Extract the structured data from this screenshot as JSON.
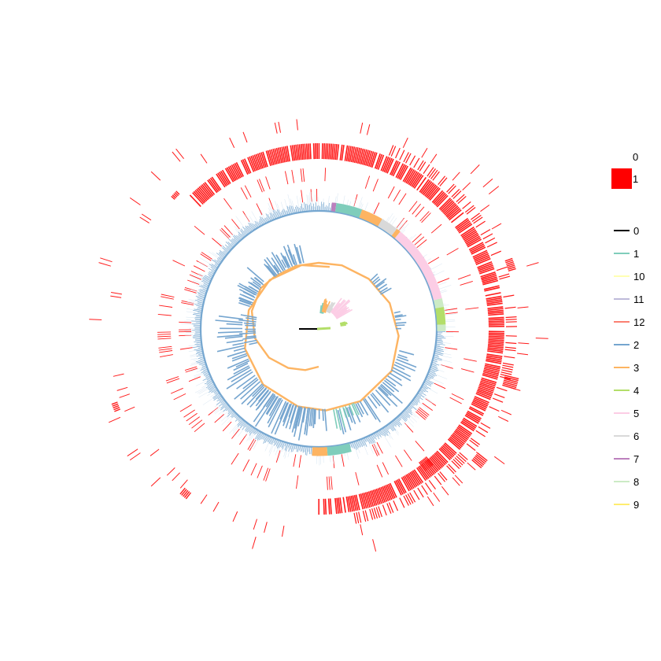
{
  "figure": {
    "type": "circular-phylogenetic-tree",
    "background": "#ffffff",
    "presence_color": "#ff1a1a",
    "tip_color": "#76a7d0"
  },
  "legend_presence": {
    "entries": [
      {
        "label": "0",
        "color": "#ffffff"
      },
      {
        "label": "1",
        "color": "#ff0000"
      }
    ]
  },
  "legend_clades": {
    "entries": [
      {
        "label": "0",
        "color": "#000000"
      },
      {
        "label": "1",
        "color": "#7fcdbb"
      },
      {
        "label": "10",
        "color": "#ffffb3"
      },
      {
        "label": "11",
        "color": "#bebada"
      },
      {
        "label": "12",
        "color": "#fb8072"
      },
      {
        "label": "2",
        "color": "#75a5cf"
      },
      {
        "label": "3",
        "color": "#fdb462"
      },
      {
        "label": "4",
        "color": "#b3de69"
      },
      {
        "label": "5",
        "color": "#fccde5"
      },
      {
        "label": "6",
        "color": "#d9d9d9"
      },
      {
        "label": "7",
        "color": "#bc80bd"
      },
      {
        "label": "8",
        "color": "#ccebc5"
      },
      {
        "label": "9",
        "color": "#ffed6f"
      }
    ]
  },
  "clade_arcs": [
    {
      "label": "7",
      "from_deg": 6,
      "to_deg": 8
    },
    {
      "label": "1",
      "from_deg": 8,
      "to_deg": 20
    },
    {
      "label": "3",
      "from_deg": 20,
      "to_deg": 30
    },
    {
      "label": "6",
      "from_deg": 30,
      "to_deg": 38
    },
    {
      "label": "3",
      "from_deg": 38,
      "to_deg": 40
    },
    {
      "label": "5",
      "from_deg": 40,
      "to_deg": 76
    },
    {
      "label": "8",
      "from_deg": 76,
      "to_deg": 80
    },
    {
      "label": "4",
      "from_deg": 80,
      "to_deg": 88
    },
    {
      "label": "8",
      "from_deg": 88,
      "to_deg": 91
    },
    {
      "label": "1",
      "from_deg": 165,
      "to_deg": 176
    },
    {
      "label": "3",
      "from_deg": 176,
      "to_deg": 183
    }
  ]
}
